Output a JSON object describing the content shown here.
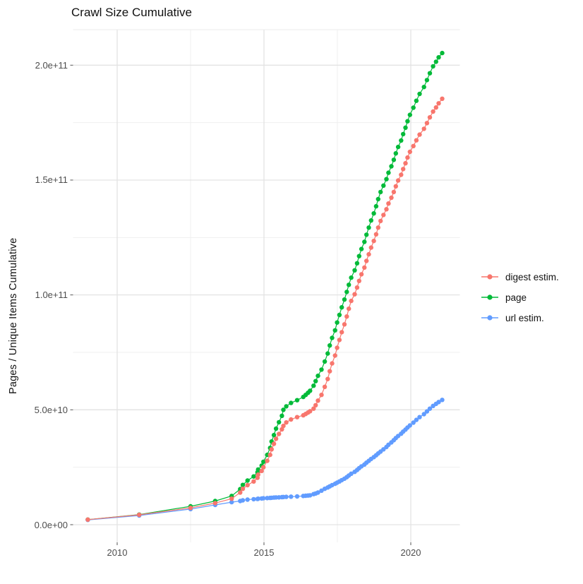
{
  "title": "Crawl Size Cumulative",
  "y_axis_title": "Pages / Unique Items Cumulative",
  "legend": {
    "position": "right",
    "items": [
      {
        "label": "digest estim.",
        "color": "#F8766D"
      },
      {
        "label": "page",
        "color": "#00BA38"
      },
      {
        "label": "url estim.",
        "color": "#619CFF"
      }
    ]
  },
  "chart_data": {
    "type": "line",
    "title": "Crawl Size Cumulative",
    "xlabel": "",
    "ylabel": "Pages / Unique Items Cumulative",
    "x_unit": "year (decimal)",
    "y_unit": "items, value = listed number × 1e9",
    "xlim": [
      2008.5,
      2021.67
    ],
    "ylim_e9": [
      -8,
      215
    ],
    "grid": true,
    "x_major_breaks": [
      2010,
      2015,
      2020
    ],
    "x_minor_breaks": [
      2012.5,
      2017.5
    ],
    "x_tick_labels": [
      "2010",
      "2015",
      "2020"
    ],
    "y_major_breaks_e9": [
      0,
      50,
      100,
      150,
      200
    ],
    "y_minor_breaks_e9": [
      25,
      75,
      125,
      175
    ],
    "y_tick_labels": [
      "0.0e+00",
      "5.0e+10",
      "1.0e+11",
      "1.5e+11",
      "2.0e+11"
    ],
    "x_years": [
      2009.0,
      2010.75,
      2012.5,
      2013.34,
      2013.9,
      2014.19,
      2014.28,
      2014.44,
      2014.65,
      2014.78,
      2014.8,
      2014.92,
      2014.98,
      2015.11,
      2015.21,
      2015.26,
      2015.34,
      2015.41,
      2015.51,
      2015.61,
      2015.66,
      2015.76,
      2015.92,
      2016.13,
      2016.34,
      2016.42,
      2016.5,
      2016.57,
      2016.69,
      2016.76,
      2016.84,
      2016.96,
      2017.07,
      2017.17,
      2017.24,
      2017.32,
      2017.42,
      2017.49,
      2017.57,
      2017.65,
      2017.74,
      2017.82,
      2017.89,
      2017.97,
      2018.09,
      2018.17,
      2018.24,
      2018.32,
      2018.42,
      2018.49,
      2018.57,
      2018.65,
      2018.74,
      2018.82,
      2018.89,
      2018.97,
      2019.07,
      2019.17,
      2019.24,
      2019.34,
      2019.42,
      2019.49,
      2019.57,
      2019.67,
      2019.74,
      2019.82,
      2019.89,
      2019.97,
      2020.09,
      2020.19,
      2020.3,
      2020.45,
      2020.55,
      2020.65,
      2020.76,
      2020.86,
      2020.95,
      2021.07
    ],
    "series": [
      {
        "name": "page",
        "color": "#00BA38",
        "zorder": 1,
        "values_e9": [
          2.2,
          4.4,
          8.0,
          10.3,
          12.5,
          15.5,
          17.3,
          19.2,
          21.0,
          22.8,
          24.0,
          25.7,
          27.4,
          30.4,
          33.4,
          36.2,
          39.0,
          41.8,
          44.6,
          47.4,
          50.0,
          51.5,
          53.0,
          54.2,
          55.6,
          56.5,
          57.4,
          58.3,
          60.5,
          62.5,
          64.8,
          67.5,
          71.0,
          74.5,
          78.0,
          81.3,
          84.6,
          88.0,
          91.3,
          94.6,
          98.0,
          101.3,
          104.4,
          107.5,
          110.7,
          113.8,
          116.9,
          120.0,
          123.1,
          126.2,
          129.3,
          132.4,
          135.5,
          138.6,
          141.7,
          144.8,
          147.6,
          150.4,
          153.2,
          156.0,
          158.8,
          161.6,
          164.4,
          167.2,
          170.0,
          172.8,
          175.6,
          178.4,
          181.5,
          184.5,
          187.5,
          190.5,
          193.5,
          196.5,
          199.5,
          201.5,
          203.4,
          205.3
        ]
      },
      {
        "name": "url estim.",
        "color": "#619CFF",
        "zorder": 2,
        "values_e9": [
          2.1,
          4.0,
          6.8,
          8.6,
          9.8,
          10.3,
          10.6,
          10.9,
          11.1,
          11.2,
          11.3,
          11.4,
          11.5,
          11.6,
          11.65,
          11.7,
          11.8,
          11.85,
          11.9,
          12.0,
          12.05,
          12.1,
          12.2,
          12.3,
          12.5,
          12.6,
          12.7,
          12.8,
          13.3,
          13.6,
          14.0,
          14.8,
          15.6,
          16.2,
          16.7,
          17.2,
          17.8,
          18.3,
          18.8,
          19.4,
          20.0,
          20.7,
          21.4,
          22.2,
          23.0,
          23.8,
          24.6,
          25.4,
          26.2,
          27.0,
          27.8,
          28.6,
          29.4,
          30.2,
          31.0,
          31.8,
          32.8,
          33.8,
          34.8,
          35.8,
          36.8,
          37.7,
          38.6,
          39.6,
          40.5,
          41.4,
          42.3,
          43.2,
          44.4,
          45.6,
          46.8,
          48.1,
          49.3,
          50.5,
          51.7,
          52.6,
          53.4,
          54.3
        ]
      },
      {
        "name": "digest estim.",
        "color": "#F8766D",
        "zorder": 3,
        "values_e9": [
          2.2,
          4.3,
          7.3,
          9.4,
          11.3,
          14.0,
          15.6,
          17.2,
          18.8,
          20.4,
          21.8,
          23.4,
          25.0,
          27.8,
          30.4,
          32.8,
          35.2,
          37.4,
          39.5,
          41.5,
          43.0,
          44.5,
          45.8,
          46.8,
          47.6,
          48.2,
          48.8,
          49.4,
          50.5,
          52.0,
          54.0,
          56.5,
          60.0,
          63.4,
          66.8,
          70.2,
          73.6,
          77.0,
          80.4,
          83.8,
          87.2,
          90.6,
          94.0,
          97.4,
          100.3,
          103.2,
          106.1,
          109.0,
          111.9,
          114.8,
          117.7,
          120.6,
          123.5,
          126.4,
          129.3,
          132.2,
          134.8,
          137.3,
          139.8,
          142.3,
          144.8,
          147.3,
          149.8,
          152.3,
          154.8,
          157.3,
          159.8,
          162.3,
          164.8,
          167.3,
          169.8,
          172.3,
          174.8,
          177.3,
          179.8,
          181.6,
          183.4,
          185.4
        ]
      }
    ]
  }
}
